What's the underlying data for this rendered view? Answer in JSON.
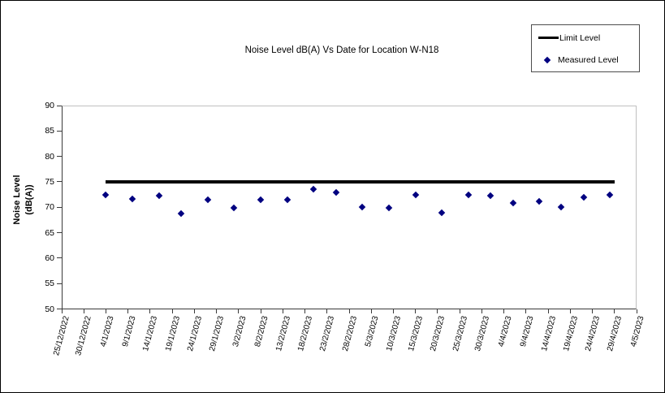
{
  "chart_data": {
    "type": "scatter",
    "title": "Noise Level dB(A) Vs Date for Location W-N18",
    "y_axis": {
      "title": "Noise Level (dB(A))",
      "title_lines": [
        "Noise Level",
        "(dB(A))"
      ],
      "min": 50,
      "max": 90,
      "tick_step": 5,
      "tick_labels": [
        "90",
        "85",
        "80",
        "75",
        "70",
        "65",
        "60",
        "55",
        "50"
      ]
    },
    "x_axis": {
      "start_date": "25/12/2022",
      "end_date": "4/5/2023",
      "days_per_tick": 5,
      "label_rotation_deg": -75,
      "tick_labels": [
        "25/12/2022",
        "30/12/2022",
        "4/1/2023",
        "9/1/2023",
        "14/1/2023",
        "19/1/2023",
        "24/1/2023",
        "29/1/2023",
        "3/2/2023",
        "8/2/2023",
        "13/2/2023",
        "18/2/2023",
        "23/2/2023",
        "28/2/2023",
        "5/3/2023",
        "10/3/2023",
        "15/3/2023",
        "20/3/2023",
        "25/3/2023",
        "30/3/2023",
        "4/4/2023",
        "9/4/2023",
        "14/4/2023",
        "19/4/2023",
        "24/4/2023",
        "29/4/2023",
        "4/5/2023"
      ]
    },
    "legend": {
      "position": "top-right",
      "items": [
        {
          "label": "Limit Level",
          "marker": "thick-line",
          "color": "#000000"
        },
        {
          "label": "Measured Level",
          "marker": "diamond",
          "color": "#000080"
        }
      ]
    },
    "series": [
      {
        "name": "Limit Level",
        "type": "line",
        "color": "#000000",
        "value": 75,
        "start_day_offset": 10,
        "end_day_offset": 125
      },
      {
        "name": "Measured Level",
        "type": "scatter",
        "marker": "diamond",
        "color": "#000080",
        "points": [
          {
            "day_offset": 10,
            "date_est": "4/1/2023",
            "value": 72.4
          },
          {
            "day_offset": 16,
            "date_est": "10/1/2023",
            "value": 71.6
          },
          {
            "day_offset": 22,
            "date_est": "16/1/2023",
            "value": 72.3
          },
          {
            "day_offset": 27,
            "date_est": "21/1/2023",
            "value": 68.7
          },
          {
            "day_offset": 33,
            "date_est": "27/1/2023",
            "value": 71.4
          },
          {
            "day_offset": 39,
            "date_est": "2/2/2023",
            "value": 69.9
          },
          {
            "day_offset": 45,
            "date_est": "8/2/2023",
            "value": 71.4
          },
          {
            "day_offset": 51,
            "date_est": "14/2/2023",
            "value": 71.5
          },
          {
            "day_offset": 57,
            "date_est": "20/2/2023",
            "value": 73.5
          },
          {
            "day_offset": 62,
            "date_est": "25/2/2023",
            "value": 72.9
          },
          {
            "day_offset": 68,
            "date_est": "3/3/2023",
            "value": 70.0
          },
          {
            "day_offset": 74,
            "date_est": "9/3/2023",
            "value": 69.9
          },
          {
            "day_offset": 80,
            "date_est": "15/3/2023",
            "value": 72.4
          },
          {
            "day_offset": 86,
            "date_est": "21/3/2023",
            "value": 68.9
          },
          {
            "day_offset": 92,
            "date_est": "27/3/2023",
            "value": 72.5
          },
          {
            "day_offset": 97,
            "date_est": "1/4/2023",
            "value": 72.3
          },
          {
            "day_offset": 102,
            "date_est": "6/4/2023",
            "value": 70.8
          },
          {
            "day_offset": 108,
            "date_est": "12/4/2023",
            "value": 71.1
          },
          {
            "day_offset": 113,
            "date_est": "17/4/2023",
            "value": 70.0
          },
          {
            "day_offset": 118,
            "date_est": "22/4/2023",
            "value": 71.9
          },
          {
            "day_offset": 124,
            "date_est": "28/4/2023",
            "value": 72.5
          }
        ]
      }
    ],
    "colors": {
      "measured": "#000080",
      "limit": "#000000",
      "plot_border_light": "#c0c0c0",
      "axis": "#3a3a3a",
      "background": "#ffffff"
    },
    "layout_hints": {
      "grid": false,
      "ylim": [
        50,
        90
      ],
      "marker_size_px": 6
    }
  }
}
